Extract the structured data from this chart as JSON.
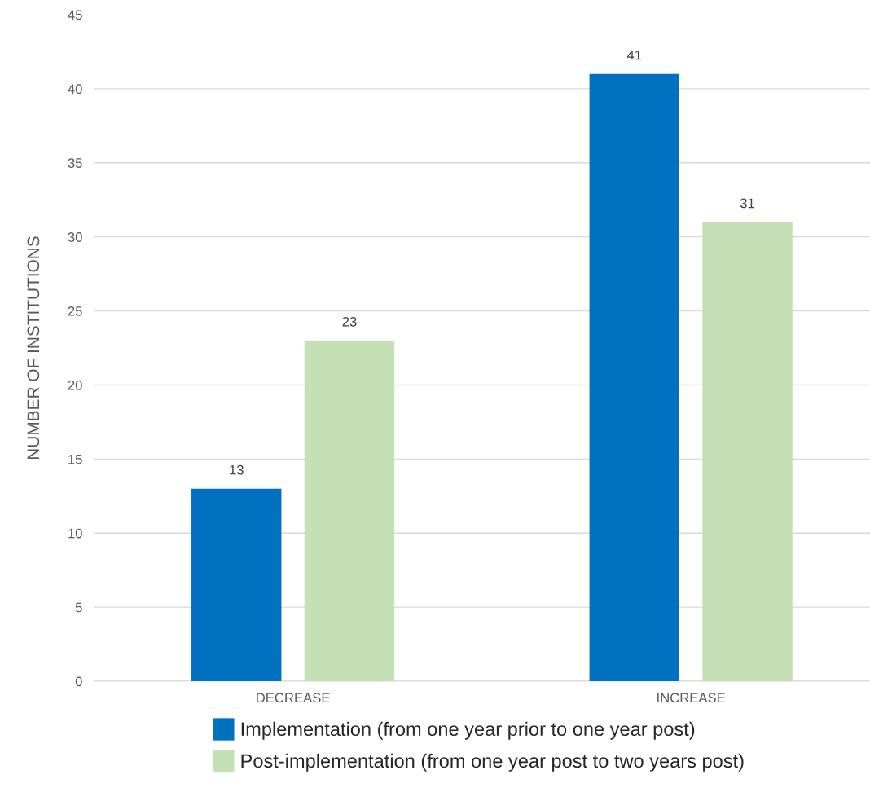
{
  "chart_data": {
    "type": "bar",
    "ylabel": "NUMBER OF INSTITUTIONS",
    "categories": [
      "DECREASE",
      "INCREASE"
    ],
    "series": [
      {
        "name": "Implementation (from one year prior to one year post)",
        "color": "#0070c0",
        "values": [
          13,
          41
        ]
      },
      {
        "name": "Post-implementation (from one year post to two years post)",
        "color": "#c5e0b4",
        "values": [
          23,
          31
        ]
      }
    ],
    "ylim": [
      0,
      45
    ],
    "yticks": [
      0,
      5,
      10,
      15,
      20,
      25,
      30,
      35,
      40,
      45
    ],
    "grid": "y",
    "legend": "bottom",
    "data_labels": true
  }
}
